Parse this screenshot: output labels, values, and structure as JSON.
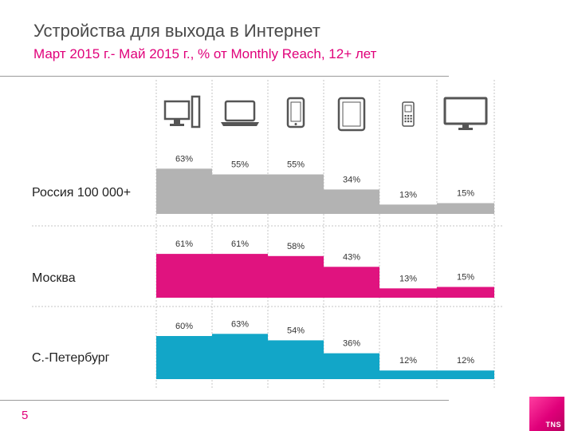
{
  "header": {
    "title": "Устройства для выхода в Интернет",
    "subtitle": "Март 2015 г.- Май 2015 г., % от Monthly Reach, 12+ лет"
  },
  "chart_data": {
    "type": "bar",
    "categories": [
      "desktop",
      "laptop",
      "smartphone",
      "tablet",
      "feature-phone",
      "smart-tv"
    ],
    "category_icons": [
      "desktop-icon",
      "laptop-icon",
      "smartphone-icon",
      "tablet-icon",
      "feature-phone-icon",
      "tv-icon"
    ],
    "ylim": [
      0,
      100
    ],
    "grid": true,
    "series": [
      {
        "name": "Россия 100 000+",
        "color": "#b3b3b3",
        "values": [
          63,
          55,
          55,
          34,
          13,
          15
        ]
      },
      {
        "name": "Москва",
        "color": "#e0137f",
        "values": [
          61,
          61,
          58,
          43,
          13,
          15
        ]
      },
      {
        "name": "С.-Петербург",
        "color": "#12a6c8",
        "values": [
          60,
          63,
          54,
          36,
          12,
          12
        ]
      }
    ],
    "value_labels": [
      [
        "63%",
        "55%",
        "55%",
        "34%",
        "13%",
        "15%"
      ],
      [
        "61%",
        "61%",
        "58%",
        "43%",
        "13%",
        "15%"
      ],
      [
        "60%",
        "63%",
        "54%",
        "36%",
        "12%",
        "12%"
      ]
    ]
  },
  "footer": {
    "page_number": "5",
    "logo_text": "TNS"
  }
}
